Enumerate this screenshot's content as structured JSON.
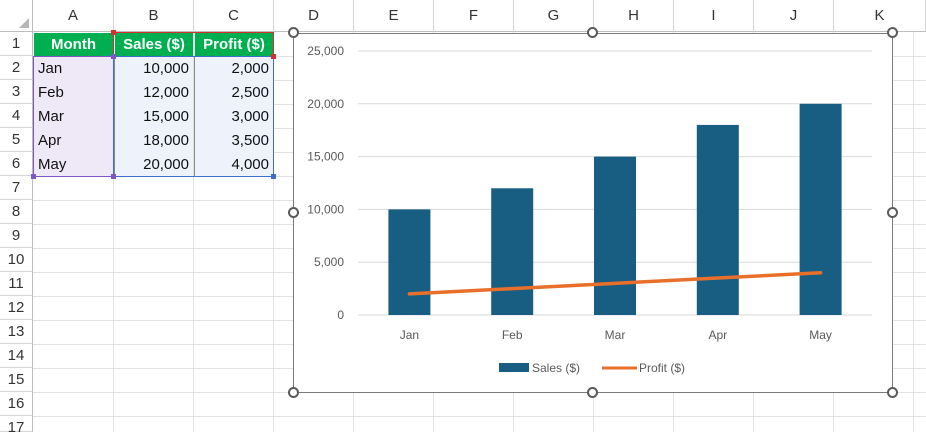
{
  "sheet": {
    "columns": [
      "A",
      "B",
      "C",
      "D",
      "E",
      "F",
      "G",
      "H",
      "I",
      "J",
      "K"
    ],
    "rows": [
      "1",
      "2",
      "3",
      "4",
      "5",
      "6",
      "7",
      "8",
      "9",
      "10",
      "11",
      "12",
      "13",
      "14",
      "15",
      "16",
      "17"
    ],
    "table": {
      "headers": [
        "Month",
        "Sales ($)",
        "Profit ($)"
      ],
      "rows": [
        [
          "Jan",
          "10,000",
          "2,000"
        ],
        [
          "Feb",
          "12,000",
          "2,500"
        ],
        [
          "Mar",
          "15,000",
          "3,000"
        ],
        [
          "Apr",
          "18,000",
          "3,500"
        ],
        [
          "May",
          "20,000",
          "4,000"
        ]
      ]
    }
  },
  "colors": {
    "header_fill": "#00b050",
    "bar": "#175e82",
    "line": "#e8702a"
  },
  "chart_data": {
    "type": "bar",
    "categories": [
      "Jan",
      "Feb",
      "Mar",
      "Apr",
      "May"
    ],
    "series": [
      {
        "name": "Sales ($)",
        "kind": "bar",
        "values": [
          10000,
          12000,
          15000,
          18000,
          20000
        ]
      },
      {
        "name": "Profit ($)",
        "kind": "line",
        "values": [
          2000,
          2500,
          3000,
          3500,
          4000
        ]
      }
    ],
    "yticks": [
      "0",
      "5,000",
      "10,000",
      "15,000",
      "20,000",
      "25,000"
    ],
    "ylim": [
      0,
      25000
    ],
    "grid": true,
    "legend": "bottom"
  }
}
